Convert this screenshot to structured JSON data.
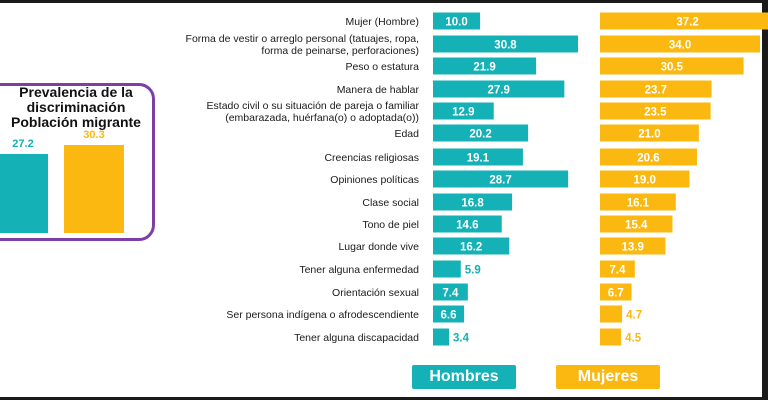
{
  "colors": {
    "hombres": "#14b1b6",
    "mujeres": "#fbb811",
    "frame": "#7b3fa6"
  },
  "inset": {
    "title_lines": [
      "Prevalencia de la",
      "discriminación",
      "Población migrante"
    ],
    "hombres_value": "27.2",
    "mujeres_value": "30.3"
  },
  "chart_data": {
    "type": "bar",
    "orientation": "horizontal",
    "categories": [
      [
        "Mujer (Hombre)"
      ],
      [
        "Forma de vestir o arreglo personal (tatuajes, ropa,",
        "forma de peinarse, perforaciones)"
      ],
      [
        "Peso o estatura"
      ],
      [
        "Manera de hablar"
      ],
      [
        "Estado civil o su situación de pareja o familiar",
        "(embarazada, huérfana(o) o adoptada(o))"
      ],
      [
        "Edad"
      ],
      [
        "Creencias religiosas"
      ],
      [
        "Opiniones políticas"
      ],
      [
        "Clase social"
      ],
      [
        "Tono de piel"
      ],
      [
        "Lugar donde vive"
      ],
      [
        "Tener alguna enfermedad"
      ],
      [
        "Orientación sexual"
      ],
      [
        "Ser persona indígena o afrodescendiente"
      ],
      [
        "Tener alguna discapacidad"
      ]
    ],
    "series": [
      {
        "name": "Hombres",
        "values": [
          10.0,
          30.8,
          21.9,
          27.9,
          12.9,
          20.2,
          19.1,
          28.7,
          16.8,
          14.6,
          16.2,
          5.9,
          7.4,
          6.6,
          3.4
        ]
      },
      {
        "name": "Mujeres",
        "values": [
          37.2,
          34.0,
          30.5,
          23.7,
          23.5,
          21.0,
          20.6,
          19.0,
          16.1,
          15.4,
          13.9,
          7.4,
          6.7,
          4.7,
          4.5
        ]
      }
    ],
    "inset_chart": {
      "type": "bar",
      "categories": [
        "Hombres",
        "Mujeres"
      ],
      "values": [
        27.2,
        30.3
      ]
    }
  },
  "legend": {
    "hombres": "Hombres",
    "mujeres": "Mujeres"
  }
}
